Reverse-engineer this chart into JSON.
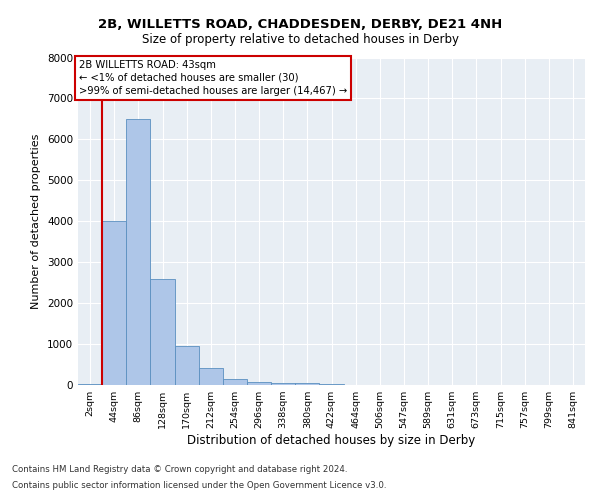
{
  "title_line1": "2B, WILLETTS ROAD, CHADDESDEN, DERBY, DE21 4NH",
  "title_line2": "Size of property relative to detached houses in Derby",
  "xlabel": "Distribution of detached houses by size in Derby",
  "ylabel": "Number of detached properties",
  "footnote1": "Contains HM Land Registry data © Crown copyright and database right 2024.",
  "footnote2": "Contains public sector information licensed under the Open Government Licence v3.0.",
  "annotation_line1": "2B WILLETTS ROAD: 43sqm",
  "annotation_line2": "← <1% of detached houses are smaller (30)",
  "annotation_line3": ">99% of semi-detached houses are larger (14,467) →",
  "bar_labels": [
    "2sqm",
    "44sqm",
    "86sqm",
    "128sqm",
    "170sqm",
    "212sqm",
    "254sqm",
    "296sqm",
    "338sqm",
    "380sqm",
    "422sqm",
    "464sqm",
    "506sqm",
    "547sqm",
    "589sqm",
    "631sqm",
    "673sqm",
    "715sqm",
    "757sqm",
    "799sqm",
    "841sqm"
  ],
  "bar_values": [
    30,
    4000,
    6500,
    2600,
    950,
    420,
    150,
    80,
    50,
    40,
    30,
    0,
    0,
    0,
    0,
    0,
    0,
    0,
    0,
    0,
    0
  ],
  "bar_color": "#aec6e8",
  "bar_edge_color": "#5a8fc0",
  "highlight_line_color": "#cc0000",
  "background_color": "#e8eef4",
  "ylim": [
    0,
    8000
  ],
  "yticks": [
    0,
    1000,
    2000,
    3000,
    4000,
    5000,
    6000,
    7000,
    8000
  ]
}
